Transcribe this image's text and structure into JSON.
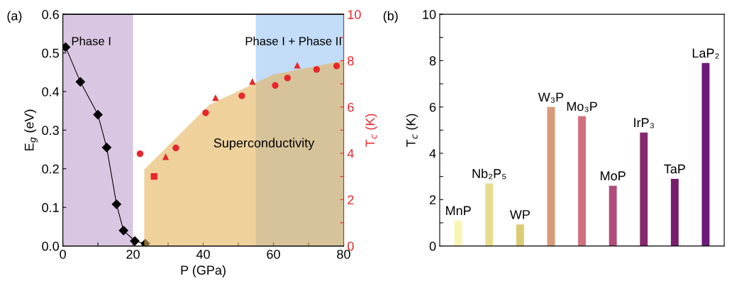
{
  "chart_data": [
    {
      "type": "line",
      "title": "(a)",
      "xlabel": "P (GPa)",
      "ylabel": "E$_{g}$ (eV)",
      "y2label": "T$_{c}$ (K)",
      "xlim": [
        0,
        80
      ],
      "xticks": [
        0,
        {
          "value": 10,
          "label": null
        },
        20,
        {
          "value": 30,
          "label": null
        },
        40,
        {
          "value": 50,
          "label": null
        },
        60,
        {
          "value": 70,
          "label": null
        },
        80
      ],
      "ylim": [
        0,
        0.6
      ],
      "yticks": [
        {
          "value": 0,
          "label": "0.0"
        },
        0.1,
        0.2,
        0.3,
        0.4,
        0.5,
        0.6
      ],
      "y2lim": [
        0,
        10
      ],
      "y2ticks": [
        0,
        {
          "value": 1,
          "label": null
        },
        2,
        {
          "value": 3,
          "label": null
        },
        4,
        {
          "value": 5,
          "label": null
        },
        6,
        {
          "value": 7,
          "label": null
        },
        8,
        {
          "value": 9,
          "label": null
        },
        10
      ],
      "bands": [
        {
          "axis": "x",
          "from": 0,
          "to": 20,
          "label": "Phase I",
          "color": "#c9aed6"
        },
        {
          "axis": "x",
          "from": 55,
          "to": 80,
          "label": "Phase I + Phase II",
          "color": "#a9cdf5"
        }
      ],
      "series": [
        {
          "type": "area",
          "name": "Superconductivity",
          "axis": "y2",
          "color": "#e5b25a",
          "x": [
            23.2,
            41.8,
            60,
            80
          ],
          "values": [
            3.3,
            6.1,
            7.4,
            8.0
          ]
        },
        {
          "type": "line",
          "color": "#000000",
          "marker": "diamond",
          "x": [
            0.8,
            5,
            10,
            12.5,
            15.3,
            17.3,
            20.5,
            23.5
          ],
          "values": [
            0.515,
            0.425,
            0.34,
            0.255,
            0.108,
            0.04,
            0.013,
            0.006
          ]
        },
        {
          "type": "scatter",
          "axis": "y2",
          "color": "#e8262b",
          "marker": "circle",
          "x": [
            22,
            32.2,
            40.7,
            51,
            60.5,
            64,
            72.3,
            78
          ],
          "values": [
            3.98,
            4.23,
            5.75,
            6.48,
            6.93,
            7.25,
            7.62,
            7.77
          ]
        },
        {
          "type": "scatter",
          "axis": "y2",
          "color": "#e8262b",
          "marker": "triangle",
          "x": [
            29.3,
            43.5,
            54,
            66.8
          ],
          "values": [
            3.85,
            6.4,
            7.1,
            7.8
          ]
        },
        {
          "type": "scatter",
          "axis": "y2",
          "color": "#e8262b",
          "marker": "square",
          "x": [
            26
          ],
          "values": [
            3.0
          ]
        }
      ]
    },
    {
      "type": "bar",
      "title": "(b)",
      "ylabel": "T$_{c}$ (K)",
      "tick_labels": "y",
      "categories": [
        "MnP",
        "Nb₂P₅",
        "WP",
        "W₃P",
        "Mo₃P",
        "MoP",
        "IrP₃",
        "TaP",
        "LaP₂"
      ],
      "values": [
        1.1,
        2.7,
        0.93,
        6.0,
        5.6,
        2.6,
        4.9,
        2.9,
        7.9
      ],
      "colors": [
        "#f8f5b0",
        "#e8dc8c",
        "#dccb74",
        "#d99a78",
        "#d06f7e",
        "#b04c7a",
        "#87276e",
        "#7a1c6e",
        "#6b1a78"
      ],
      "ylim": [
        0,
        10
      ],
      "yticks": [
        0,
        {
          "value": 1,
          "label": null
        },
        2,
        {
          "value": 3,
          "label": null
        },
        4,
        {
          "value": 5,
          "label": null
        },
        6,
        {
          "value": 7,
          "label": null
        },
        8,
        {
          "value": 9,
          "label": null
        },
        10
      ]
    }
  ]
}
